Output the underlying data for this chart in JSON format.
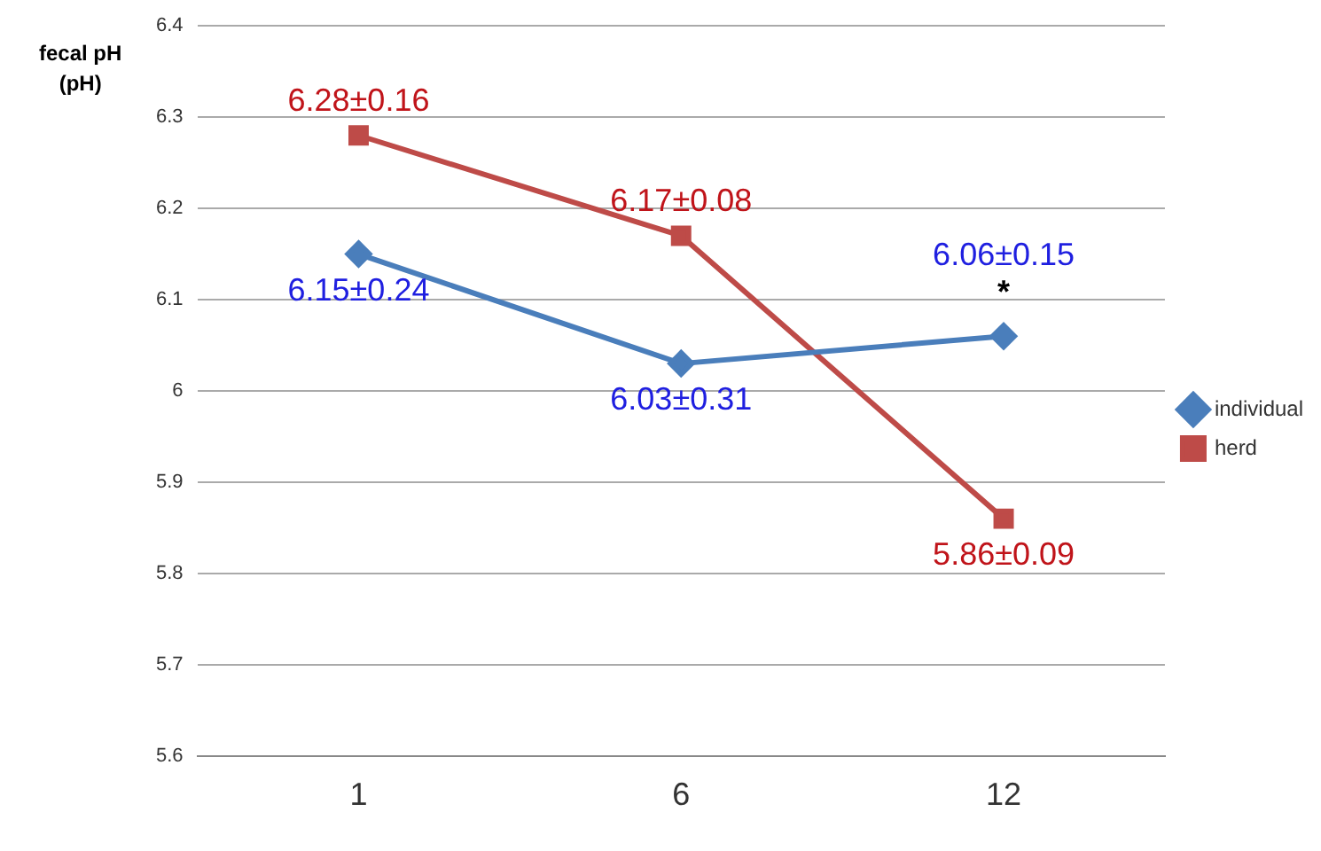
{
  "chart_data": {
    "type": "line",
    "ylabel": "fecal pH\n(pH)",
    "categories": [
      "1",
      "6",
      "12"
    ],
    "series": [
      {
        "name": "individual",
        "color": "#4a7ebb",
        "marker": "diamond",
        "values": [
          6.15,
          6.03,
          6.06
        ],
        "value_labels": [
          "6.15±0.24",
          "6.03±0.31",
          "6.06±0.15"
        ]
      },
      {
        "name": "herd",
        "color": "#be4b48",
        "marker": "square",
        "values": [
          6.28,
          6.17,
          5.86
        ],
        "value_labels": [
          "6.28±0.16",
          "6.17±0.08",
          "5.86±0.09"
        ]
      }
    ],
    "ylim": [
      5.6,
      6.4
    ],
    "yticks": [
      5.6,
      5.7,
      5.8,
      5.9,
      6,
      6.1,
      6.2,
      6.3,
      6.4
    ],
    "grid": "y",
    "legend": "right",
    "annotations": [
      {
        "text": "*",
        "x": "12",
        "y": 6.06
      }
    ]
  }
}
